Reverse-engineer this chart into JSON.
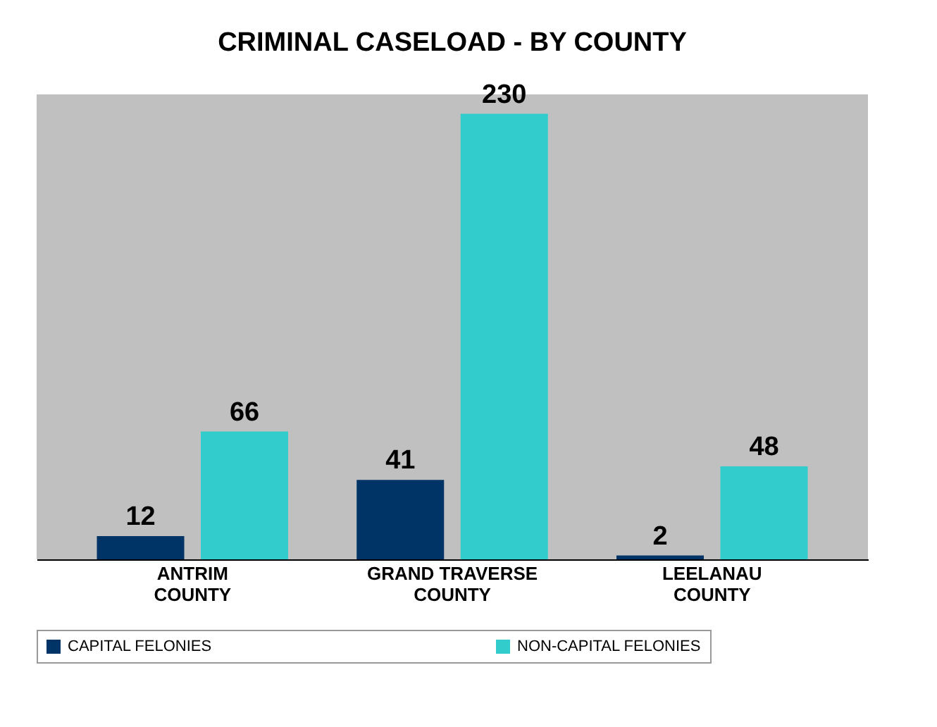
{
  "chart_data": {
    "type": "bar",
    "title": "CRIMINAL CASELOAD - BY COUNTY",
    "categories": [
      "ANTRIM\nCOUNTY",
      "GRAND TRAVERSE\nCOUNTY",
      "LEELANAU\nCOUNTY"
    ],
    "series": [
      {
        "name": "CAPITAL FELONIES",
        "color": "#003366",
        "values": [
          12,
          41,
          2
        ]
      },
      {
        "name": "NON-CAPITAL FELONIES",
        "color": "#33cccc",
        "values": [
          66,
          230,
          48
        ]
      }
    ],
    "data_labels": true,
    "legend": "bottom",
    "grid": false
  }
}
